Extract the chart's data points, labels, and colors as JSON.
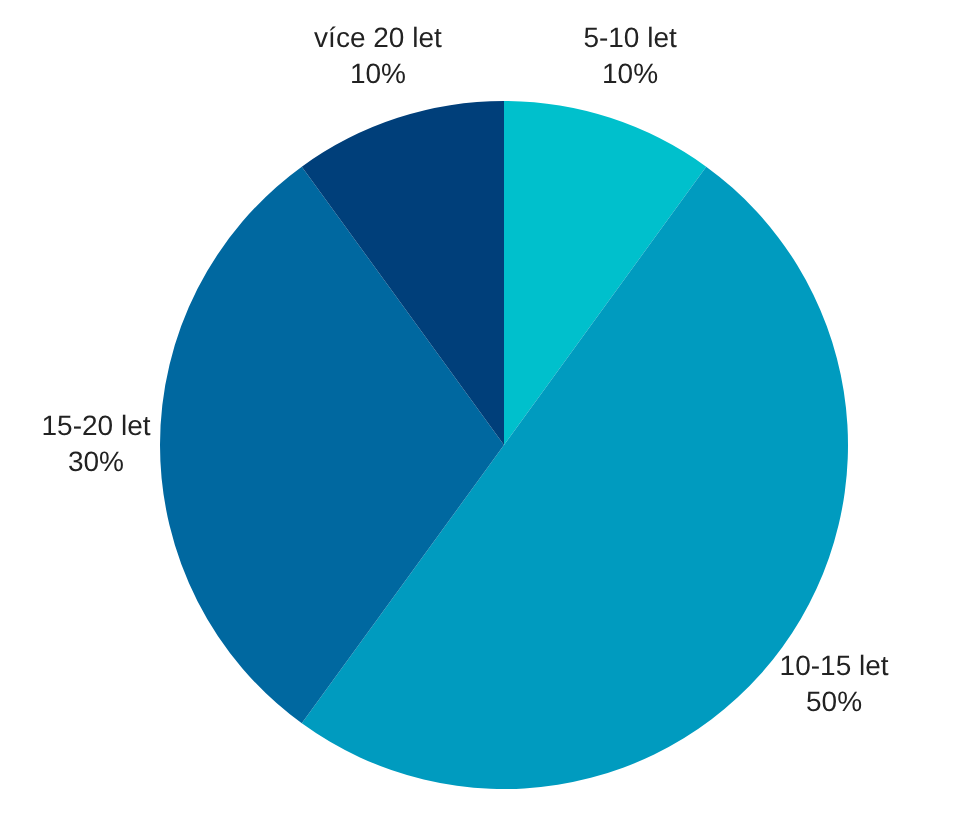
{
  "chart_data": {
    "type": "pie",
    "categories": [
      "5-10 let",
      "10-15 let",
      "15-20 let",
      "více 20 let"
    ],
    "values": [
      10,
      50,
      30,
      10
    ],
    "colors": [
      "#00c0cc",
      "#009bbf",
      "#0068a0",
      "#003f7a"
    ],
    "value_labels": [
      "10%",
      "50%",
      "30%",
      "10%"
    ],
    "legend": false
  }
}
